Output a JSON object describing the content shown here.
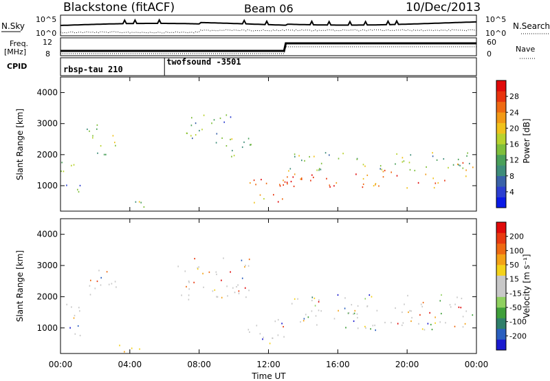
{
  "header": {
    "title": "Blackstone (fitACF)",
    "beam": "Beam 06",
    "date": "10/Dec/2013"
  },
  "top_panels": {
    "nsky_label": "N.Sky",
    "nsky_ticks": [
      "10^5",
      "10^0"
    ],
    "nsearch_label": "N.Search",
    "nsearch_ticks": [
      "10^5",
      "10^0"
    ],
    "freq_label": "Freq.",
    "freq_unit": "[MHz]",
    "freq_ticks": [
      "12",
      "8"
    ],
    "nave_label": "Nave",
    "nave_ticks": [
      "60",
      "0"
    ],
    "cpid_label": "CPID",
    "cpid_segments": [
      {
        "label": "rbsp-tau 210",
        "start_hour": 0,
        "end_hour": 6
      },
      {
        "label": "twofsound -3501",
        "start_hour": 6,
        "end_hour": 24
      }
    ]
  },
  "chart_data": [
    {
      "type": "heatmap",
      "title": "",
      "ylabel": "Slant Range [km]",
      "xlabel": "",
      "xlim": [
        0,
        24
      ],
      "ylim": [
        180,
        4500
      ],
      "yticks": [
        "1000",
        "2000",
        "3000",
        "4000"
      ],
      "colorbar_label": "Power [dB]",
      "colorbar_ticks": [
        "4",
        "8",
        "12",
        "16",
        "20",
        "24",
        "28"
      ],
      "colorbar_colors": [
        "#0a1ae6",
        "#2c3fd0",
        "#3a62a8",
        "#3f8d7a",
        "#4aa05a",
        "#7fbf3c",
        "#b8d22e",
        "#f0c21c",
        "#f29a16",
        "#ef6a12",
        "#e8340e",
        "#e00a0a"
      ],
      "regions": [
        {
          "name": "early near-range band",
          "t": [
            0.0,
            1.3
          ],
          "r": [
            1300,
            1800
          ],
          "level": 0.55
        },
        {
          "name": "early far patch",
          "t": [
            1.5,
            3.3
          ],
          "r": [
            2000,
            3000
          ],
          "level": 0.45
        },
        {
          "name": "early low band",
          "t": [
            0.1,
            1.6
          ],
          "r": [
            750,
            1100
          ],
          "level": 0.3
        },
        {
          "name": "morning far patch",
          "t": [
            6.6,
            9.9
          ],
          "r": [
            2400,
            3300
          ],
          "level": 0.35
        },
        {
          "name": "morning far tail",
          "t": [
            9.0,
            11.0
          ],
          "r": [
            1900,
            2600
          ],
          "level": 0.45
        },
        {
          "name": "near-range echo",
          "t": [
            3.3,
            5.2
          ],
          "r": [
            250,
            520
          ],
          "level": 0.5
        },
        {
          "name": "descending band",
          "t": [
            10.6,
            12.9
          ],
          "r": [
            400,
            1300
          ],
          "level": 0.8
        },
        {
          "name": "main evening band",
          "t": [
            12.8,
            22.6
          ],
          "r": [
            950,
            1550
          ],
          "level": 0.85
        },
        {
          "name": "main band upper edge",
          "t": [
            13.0,
            23.8
          ],
          "r": [
            1500,
            2100
          ],
          "level": 0.4
        },
        {
          "name": "late end band",
          "t": [
            22.3,
            23.9
          ],
          "r": [
            1300,
            1800
          ],
          "level": 0.75
        }
      ]
    },
    {
      "type": "heatmap",
      "title": "",
      "ylabel": "Slant Range [km]",
      "xlabel": "Time UT",
      "xlim": [
        0,
        24
      ],
      "ylim": [
        180,
        4500
      ],
      "yticks": [
        "1000",
        "2000",
        "3000",
        "4000"
      ],
      "xticks": [
        "00:00",
        "04:00",
        "08:00",
        "12:00",
        "16:00",
        "20:00",
        "00:00"
      ],
      "colorbar_label": "Velocity [m s⁻¹]",
      "colorbar_ticks": [
        "200",
        "100",
        "50",
        "15",
        "-15",
        "-50",
        "-100",
        "-200"
      ],
      "colorbar_colors": [
        "#1a1acf",
        "#2a5fbf",
        "#2f7f6a",
        "#3f9f3a",
        "#8fd05f",
        "#c8c8c8",
        "#c8c8c8",
        "#f4d21a",
        "#f4a216",
        "#ee6a12",
        "#e83a10",
        "#e00a0a"
      ],
      "regions": [
        {
          "name": "early gray band",
          "t": [
            0.0,
            1.6
          ],
          "r": [
            1300,
            1800
          ],
          "level": 0.5
        },
        {
          "name": "early far gray",
          "t": [
            1.5,
            3.3
          ],
          "r": [
            2000,
            3000
          ],
          "level": 0.5
        },
        {
          "name": "early low gray",
          "t": [
            0.1,
            1.6
          ],
          "r": [
            750,
            1100
          ],
          "level": 0.5
        },
        {
          "name": "morning far mixed",
          "t": [
            6.6,
            11.0
          ],
          "r": [
            1900,
            3300
          ],
          "level": 0.5
        },
        {
          "name": "near-range orange",
          "t": [
            3.3,
            5.2
          ],
          "r": [
            250,
            520
          ],
          "level": 0.7
        },
        {
          "name": "descending band",
          "t": [
            10.6,
            12.9
          ],
          "r": [
            400,
            1300
          ],
          "level": 0.55
        },
        {
          "name": "main gray band",
          "t": [
            12.8,
            23.8
          ],
          "r": [
            950,
            1550
          ],
          "level": 0.5
        },
        {
          "name": "main band upper mixed",
          "t": [
            13.0,
            23.8
          ],
          "r": [
            1500,
            2100
          ],
          "level": 0.5
        }
      ]
    }
  ]
}
